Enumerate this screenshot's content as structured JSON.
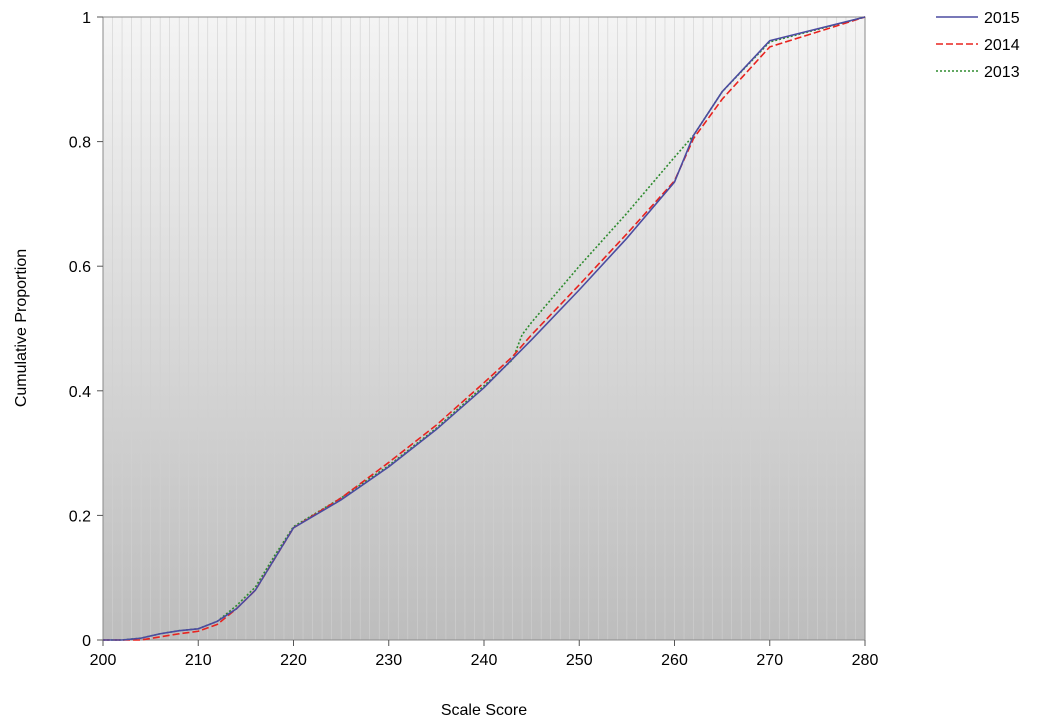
{
  "chart_data": {
    "type": "line",
    "title": "",
    "xlabel": "Scale Score",
    "ylabel": "Cumulative Proportion",
    "xlim": [
      200,
      280
    ],
    "ylim": [
      0,
      1
    ],
    "xticks": [
      200,
      210,
      220,
      230,
      240,
      250,
      260,
      270,
      280
    ],
    "yticks": [
      0,
      0.2,
      0.4,
      0.6,
      0.8,
      1
    ],
    "ytick_labels": [
      "0",
      "0.2",
      "0.4",
      "0.6",
      "0.8",
      "1"
    ],
    "grid": "vertical",
    "legend_position": "top-right",
    "series": [
      {
        "name": "2015",
        "color": "#4b4ba0",
        "style": "solid",
        "points": [
          [
            200,
            0
          ],
          [
            202,
            0
          ],
          [
            204,
            0.003
          ],
          [
            206,
            0.01
          ],
          [
            208,
            0.015
          ],
          [
            210,
            0.018
          ],
          [
            212,
            0.03
          ],
          [
            214,
            0.05
          ],
          [
            216,
            0.08
          ],
          [
            218,
            0.13
          ],
          [
            220,
            0.18
          ],
          [
            225,
            0.225
          ],
          [
            230,
            0.278
          ],
          [
            235,
            0.338
          ],
          [
            240,
            0.405
          ],
          [
            245,
            0.482
          ],
          [
            250,
            0.562
          ],
          [
            255,
            0.645
          ],
          [
            260,
            0.735
          ],
          [
            262,
            0.81
          ],
          [
            265,
            0.88
          ],
          [
            270,
            0.962
          ],
          [
            280,
            1
          ]
        ]
      },
      {
        "name": "2014",
        "color": "#e8231f",
        "style": "dashed",
        "points": [
          [
            200,
            0
          ],
          [
            202,
            0
          ],
          [
            204,
            0
          ],
          [
            206,
            0.005
          ],
          [
            208,
            0.01
          ],
          [
            210,
            0.014
          ],
          [
            212,
            0.025
          ],
          [
            214,
            0.05
          ],
          [
            216,
            0.08
          ],
          [
            218,
            0.13
          ],
          [
            220,
            0.18
          ],
          [
            225,
            0.228
          ],
          [
            230,
            0.285
          ],
          [
            235,
            0.345
          ],
          [
            240,
            0.413
          ],
          [
            243,
            0.455
          ],
          [
            245,
            0.49
          ],
          [
            250,
            0.57
          ],
          [
            255,
            0.652
          ],
          [
            260,
            0.737
          ],
          [
            262,
            0.805
          ],
          [
            265,
            0.868
          ],
          [
            270,
            0.952
          ],
          [
            280,
            1
          ]
        ]
      },
      {
        "name": "2013",
        "color": "#2e8b2e",
        "style": "dotted",
        "points": [
          [
            200,
            0
          ],
          [
            202,
            0
          ],
          [
            204,
            0.003
          ],
          [
            206,
            0.01
          ],
          [
            208,
            0.015
          ],
          [
            210,
            0.018
          ],
          [
            212,
            0.03
          ],
          [
            214,
            0.055
          ],
          [
            216,
            0.085
          ],
          [
            218,
            0.135
          ],
          [
            220,
            0.182
          ],
          [
            225,
            0.228
          ],
          [
            230,
            0.28
          ],
          [
            235,
            0.34
          ],
          [
            240,
            0.408
          ],
          [
            243,
            0.45
          ],
          [
            244,
            0.49
          ],
          [
            245,
            0.51
          ],
          [
            250,
            0.6
          ],
          [
            255,
            0.685
          ],
          [
            260,
            0.775
          ],
          [
            262,
            0.81
          ],
          [
            265,
            0.88
          ],
          [
            270,
            0.96
          ],
          [
            280,
            1
          ]
        ]
      }
    ]
  }
}
